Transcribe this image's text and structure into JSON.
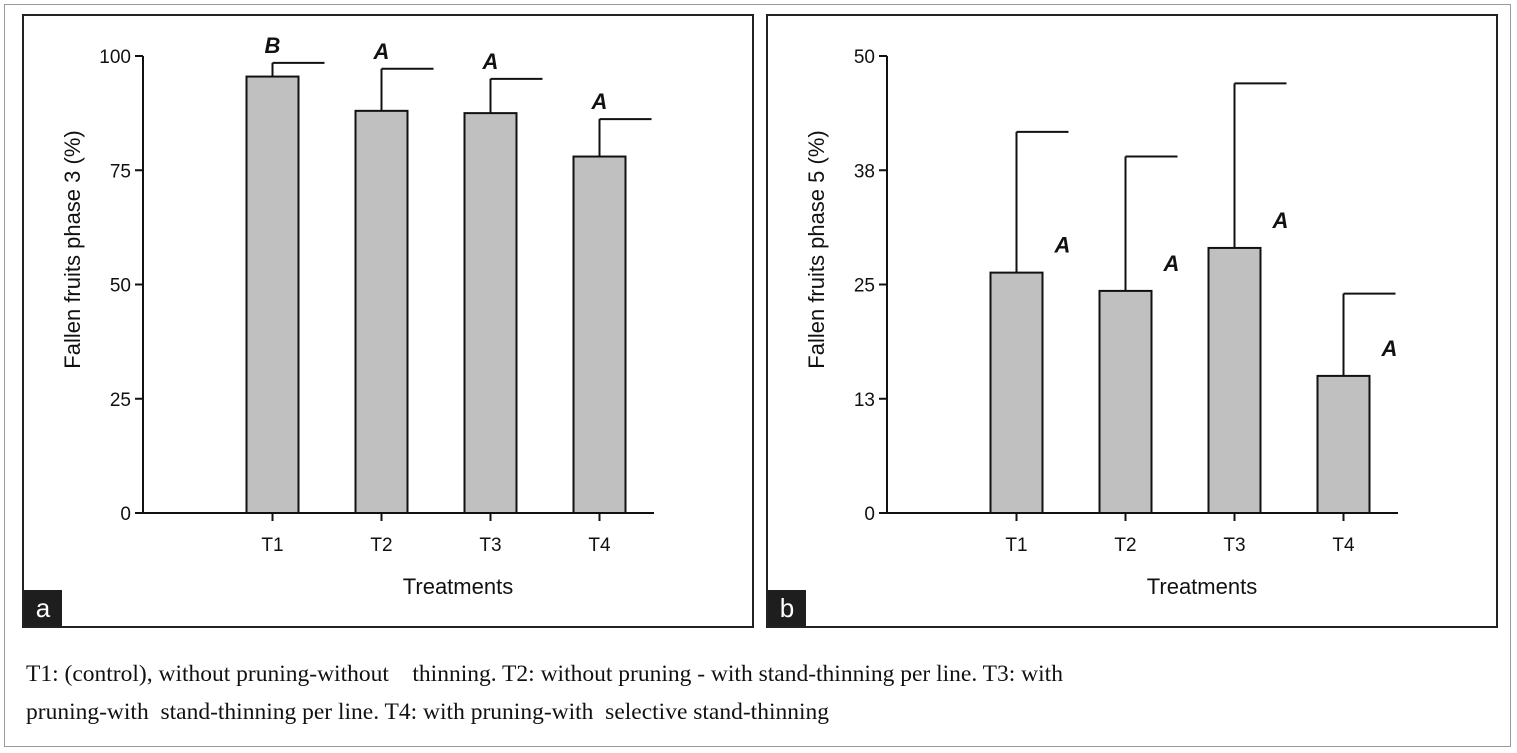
{
  "figure_caption_lines": [
    "T1: (control), without pruning-without    thinning. T2: without pruning - with stand-thinning per line. T3: with",
    "pruning-with  stand-thinning per line. T4: with pruning-with  selective stand-thinning"
  ],
  "colors": {
    "bar_fill": "#c0c0c0",
    "bar_stroke": "#111111",
    "tag_bg": "#1e1e1e"
  },
  "chart_data": [
    {
      "panel_label": "a",
      "type": "bar",
      "categories": [
        "T1",
        "T2",
        "T3",
        "T4"
      ],
      "values": [
        95.5,
        88,
        87.5,
        78
      ],
      "error_upper": [
        98.5,
        97.2,
        95,
        86.2
      ],
      "significance": [
        "B",
        "A",
        "A",
        "A"
      ],
      "xlabel": "Treatments",
      "ylabel": "Fallen fruits phase 3 (%)",
      "ylim": [
        0,
        100
      ],
      "yticks": [
        0,
        25,
        50,
        75,
        100
      ],
      "ytick_labels": [
        "0",
        "25",
        "50",
        "75",
        "100"
      ],
      "sig_position": "above"
    },
    {
      "panel_label": "b",
      "type": "bar",
      "categories": [
        "T1",
        "T2",
        "T3",
        "T4"
      ],
      "values": [
        26.3,
        24.3,
        29,
        15
      ],
      "error_upper": [
        41.7,
        39,
        47,
        24
      ],
      "significance": [
        "A",
        "A",
        "A",
        "A"
      ],
      "xlabel": "Treatments",
      "ylabel": "Fallen fruits phase 5 (%)",
      "ylim": [
        0,
        50
      ],
      "yticks": [
        0,
        12.5,
        25,
        37.5,
        50
      ],
      "ytick_labels": [
        "0",
        "13",
        "25",
        "38",
        "50"
      ],
      "sig_position": "right"
    }
  ]
}
